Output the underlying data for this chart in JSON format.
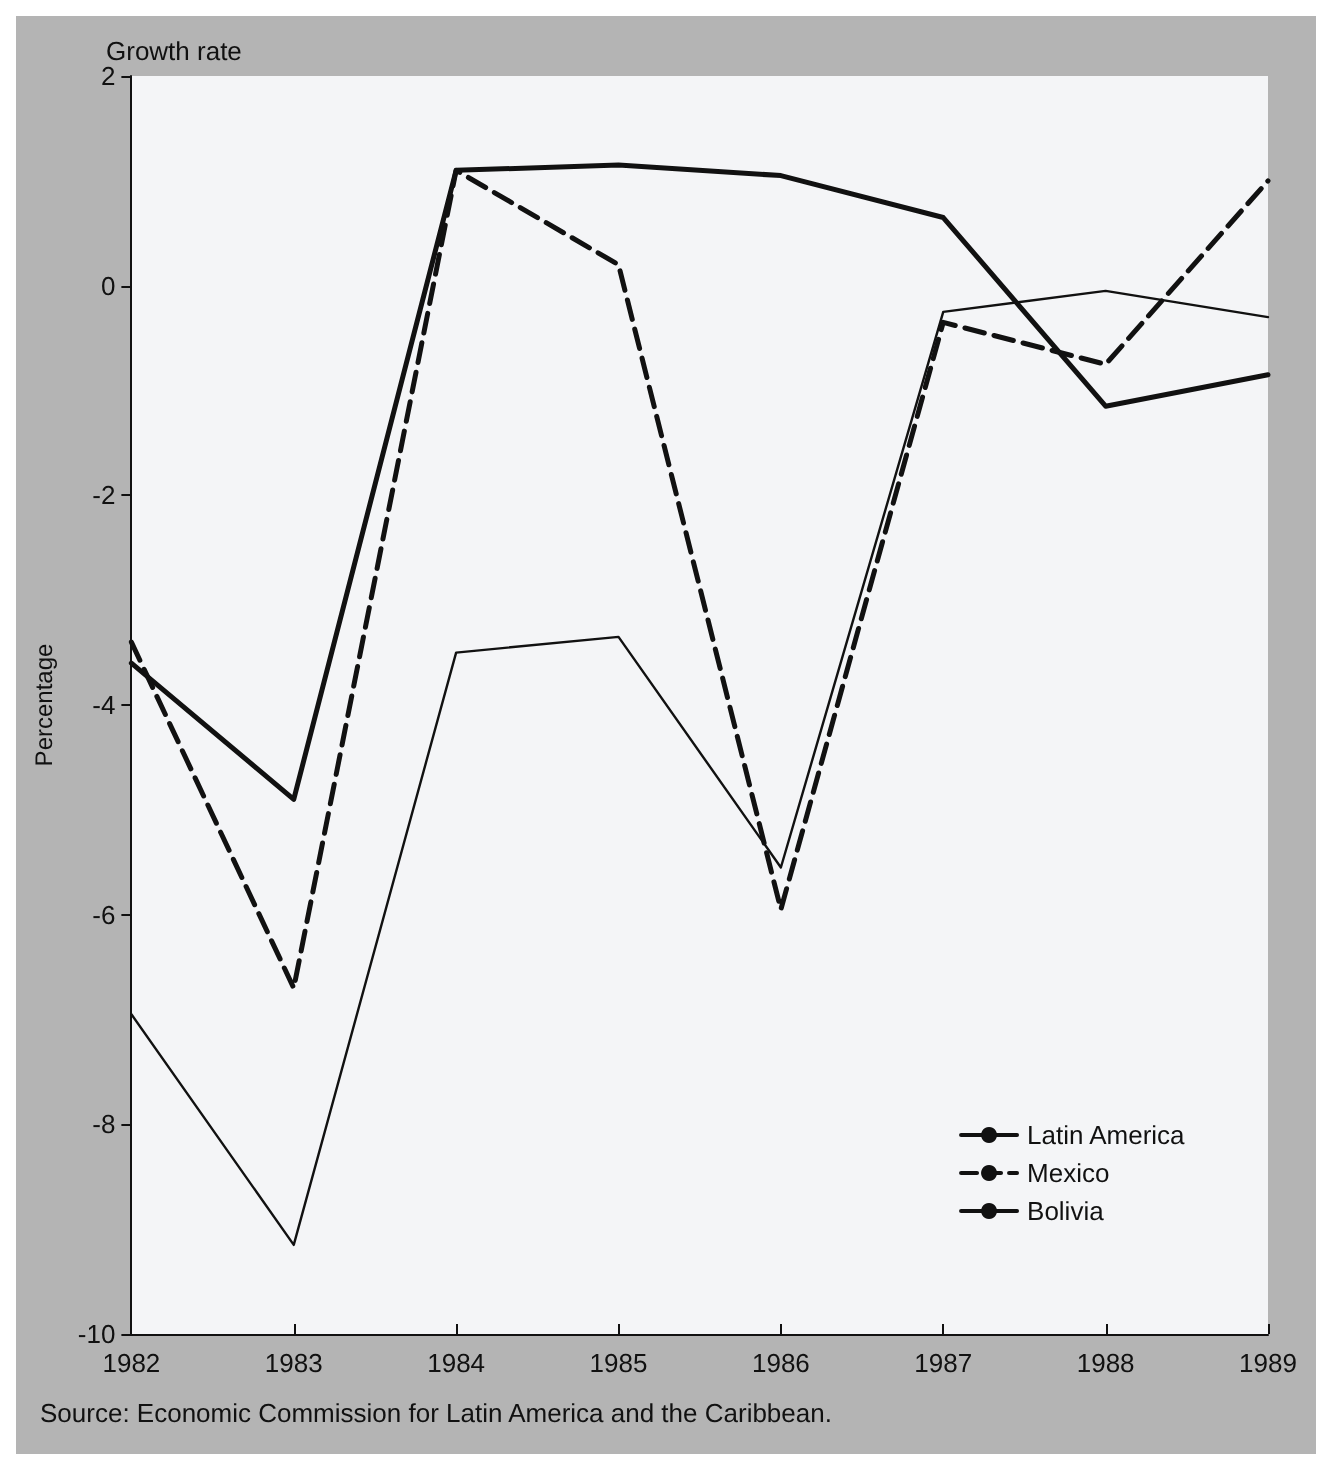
{
  "chart_data": {
    "type": "line",
    "title": "Growth rate",
    "ylabel": "Percentage",
    "annotations": [
      "Source: Economic Commission for Latin America and the Caribbean."
    ],
    "categories": [
      "1982",
      "1983",
      "1984",
      "1985",
      "1986",
      "1987",
      "1988",
      "1989"
    ],
    "series": [
      {
        "name": "Latin America",
        "color": "#111111",
        "line_style": "solid",
        "values": [
          -3.6,
          -4.9,
          1.1,
          1.15,
          1.05,
          0.65,
          -1.15,
          -0.85
        ]
      },
      {
        "name": "Mexico",
        "color": "#111111",
        "line_style": "dashed",
        "values": [
          -3.4,
          -6.7,
          1.1,
          0.2,
          -5.95,
          -0.35,
          -0.75,
          1.0
        ]
      },
      {
        "name": "Bolivia",
        "color": "#111111",
        "line_style": "solid",
        "values": [
          -6.95,
          -9.15,
          -3.5,
          -3.35,
          -5.55,
          -0.25,
          -0.05,
          -0.3
        ]
      }
    ],
    "ylim": [
      -10,
      2
    ],
    "yticks": [
      -10,
      -8,
      -6,
      -4,
      -2,
      0,
      2
    ],
    "grid": false,
    "legend": "bottom right",
    "marker": "none"
  }
}
